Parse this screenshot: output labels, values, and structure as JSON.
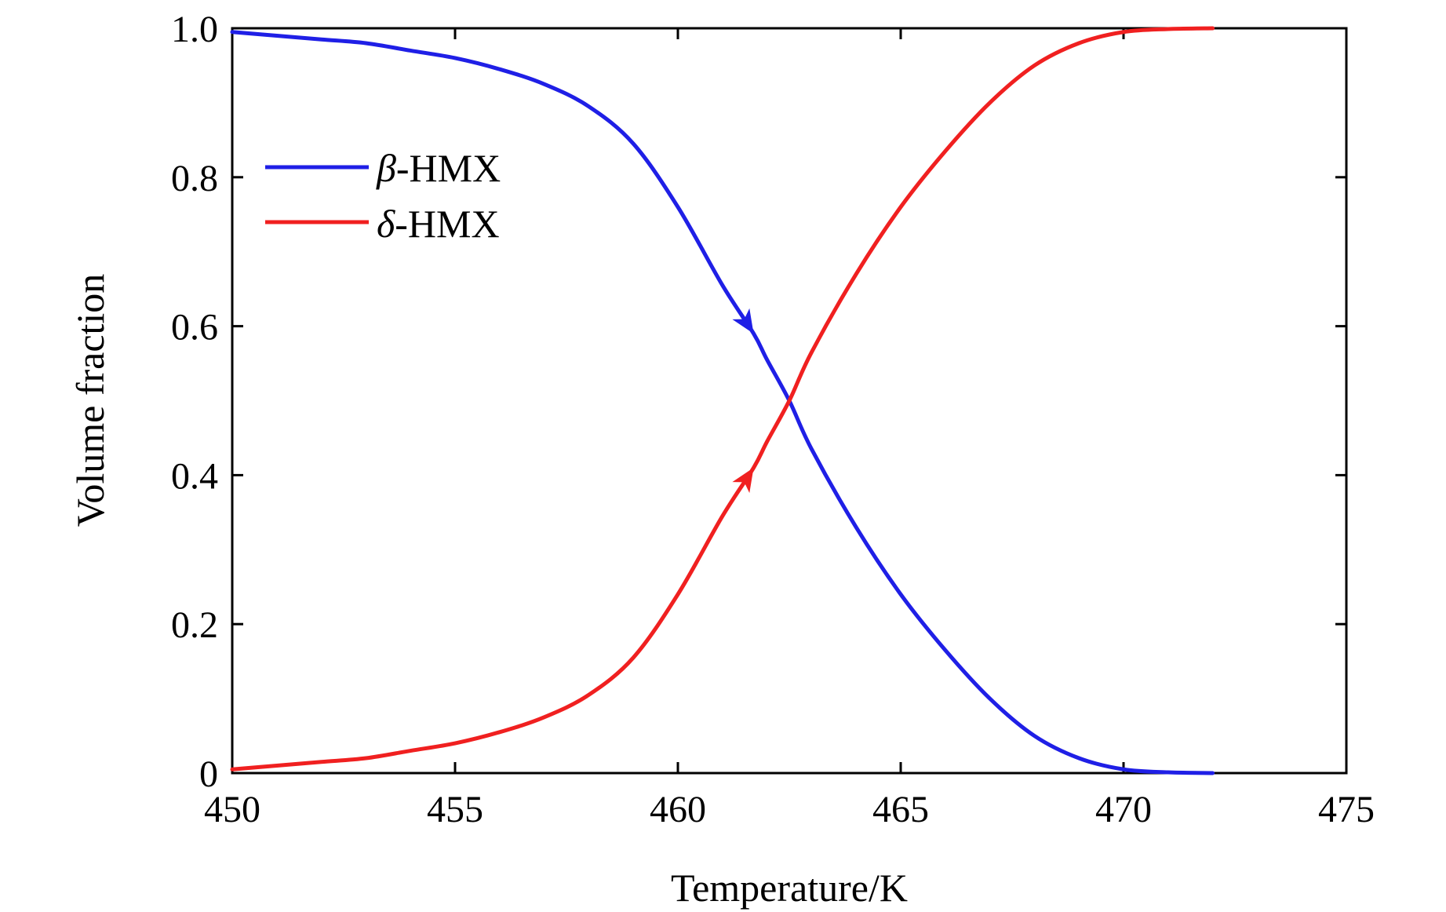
{
  "chart_data": {
    "type": "line",
    "xlabel": "Temperature/K",
    "ylabel": "Volume fraction",
    "xlim": [
      450,
      475
    ],
    "ylim": [
      0,
      1
    ],
    "xticks": [
      450,
      455,
      460,
      465,
      470,
      475
    ],
    "yticks": [
      0,
      0.2,
      0.4,
      0.6,
      0.8,
      1.0
    ],
    "xtick_labels": [
      "450",
      "455",
      "460",
      "465",
      "470",
      "475"
    ],
    "ytick_labels": [
      "0",
      "0.2",
      "0.4",
      "0.6",
      "0.8",
      "1.0"
    ],
    "grid": false,
    "legend_position": "upper-left",
    "series": [
      {
        "name": "β-HMX",
        "legend_symbol": "β",
        "legend_text": "-HMX",
        "color": "#1f1fe6",
        "arrow_at": 461.7,
        "x": [
          450,
          451,
          452,
          453,
          454,
          455,
          456,
          457,
          458,
          459,
          460,
          461,
          461.7,
          462,
          462.5,
          463,
          464,
          465,
          466,
          467,
          468,
          469,
          470,
          471,
          472
        ],
        "y": [
          0.995,
          0.99,
          0.985,
          0.98,
          0.97,
          0.96,
          0.945,
          0.925,
          0.895,
          0.845,
          0.76,
          0.655,
          0.59,
          0.555,
          0.5,
          0.435,
          0.33,
          0.24,
          0.165,
          0.1,
          0.05,
          0.02,
          0.005,
          0.001,
          0.0
        ]
      },
      {
        "name": "δ-HMX",
        "legend_symbol": "δ",
        "legend_text": "-HMX",
        "color": "#f02020",
        "arrow_at": 461.7,
        "x": [
          450,
          451,
          452,
          453,
          454,
          455,
          456,
          457,
          458,
          459,
          460,
          461,
          461.7,
          462,
          462.5,
          463,
          464,
          465,
          466,
          467,
          468,
          469,
          470,
          471,
          472
        ],
        "y": [
          0.005,
          0.01,
          0.015,
          0.02,
          0.03,
          0.04,
          0.055,
          0.075,
          0.105,
          0.155,
          0.24,
          0.345,
          0.41,
          0.445,
          0.5,
          0.565,
          0.67,
          0.76,
          0.835,
          0.9,
          0.95,
          0.98,
          0.995,
          0.999,
          1.0
        ]
      }
    ]
  }
}
